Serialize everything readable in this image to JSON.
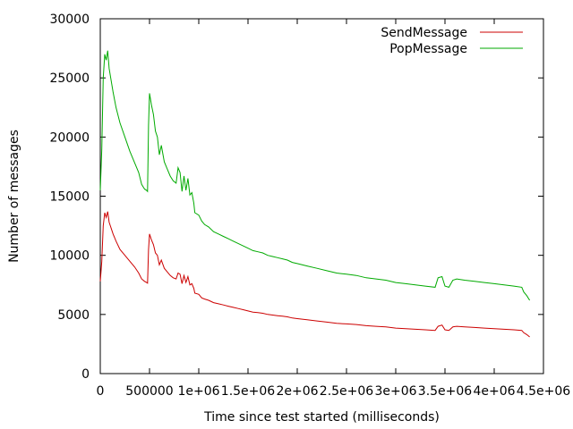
{
  "chart_data": {
    "type": "line",
    "title": "",
    "xlabel": "Time since test started (milliseconds)",
    "ylabel": "Number of messages",
    "xlim": [
      0,
      4500000
    ],
    "ylim": [
      0,
      30000
    ],
    "grid": false,
    "legend_position": "top-right",
    "x_ticks": [
      {
        "value": 0,
        "label": "0"
      },
      {
        "value": 500000,
        "label": "500000"
      },
      {
        "value": 1000000,
        "label": "1e+06"
      },
      {
        "value": 1500000,
        "label": "1.5e+06"
      },
      {
        "value": 2000000,
        "label": "2e+06"
      },
      {
        "value": 2500000,
        "label": "2.5e+06"
      },
      {
        "value": 3000000,
        "label": "3e+06"
      },
      {
        "value": 3500000,
        "label": "3.5e+06"
      },
      {
        "value": 4000000,
        "label": "4e+06"
      },
      {
        "value": 4500000,
        "label": "4.5e+06"
      }
    ],
    "y_ticks": [
      {
        "value": 0,
        "label": "0"
      },
      {
        "value": 5000,
        "label": "5000"
      },
      {
        "value": 10000,
        "label": "10000"
      },
      {
        "value": 15000,
        "label": "15000"
      },
      {
        "value": 20000,
        "label": "20000"
      },
      {
        "value": 25000,
        "label": "25000"
      },
      {
        "value": 30000,
        "label": "30000"
      }
    ],
    "series": [
      {
        "name": "SendMessage",
        "color": "#cc0000",
        "points": [
          [
            0,
            7800
          ],
          [
            15000,
            9500
          ],
          [
            30000,
            12500
          ],
          [
            45000,
            13600
          ],
          [
            60000,
            13200
          ],
          [
            75000,
            13700
          ],
          [
            90000,
            12800
          ],
          [
            110000,
            12300
          ],
          [
            130000,
            11800
          ],
          [
            160000,
            11200
          ],
          [
            200000,
            10500
          ],
          [
            250000,
            10000
          ],
          [
            300000,
            9500
          ],
          [
            350000,
            9000
          ],
          [
            390000,
            8500
          ],
          [
            420000,
            8000
          ],
          [
            450000,
            7800
          ],
          [
            470000,
            7700
          ],
          [
            480000,
            7650
          ],
          [
            490000,
            10500
          ],
          [
            500000,
            11800
          ],
          [
            520000,
            11300
          ],
          [
            540000,
            10900
          ],
          [
            560000,
            10200
          ],
          [
            580000,
            10000
          ],
          [
            600000,
            9200
          ],
          [
            620000,
            9600
          ],
          [
            650000,
            8900
          ],
          [
            680000,
            8600
          ],
          [
            710000,
            8300
          ],
          [
            740000,
            8100
          ],
          [
            770000,
            8000
          ],
          [
            790000,
            8500
          ],
          [
            810000,
            8400
          ],
          [
            830000,
            7600
          ],
          [
            850000,
            8300
          ],
          [
            870000,
            7700
          ],
          [
            890000,
            8200
          ],
          [
            910000,
            7500
          ],
          [
            930000,
            7600
          ],
          [
            950000,
            7200
          ],
          [
            960000,
            6800
          ],
          [
            1000000,
            6700
          ],
          [
            1030000,
            6400
          ],
          [
            1060000,
            6300
          ],
          [
            1100000,
            6200
          ],
          [
            1150000,
            6000
          ],
          [
            1200000,
            5900
          ],
          [
            1250000,
            5800
          ],
          [
            1300000,
            5700
          ],
          [
            1350000,
            5600
          ],
          [
            1400000,
            5500
          ],
          [
            1450000,
            5400
          ],
          [
            1500000,
            5300
          ],
          [
            1550000,
            5200
          ],
          [
            1600000,
            5150
          ],
          [
            1650000,
            5100
          ],
          [
            1700000,
            5000
          ],
          [
            1750000,
            4950
          ],
          [
            1800000,
            4900
          ],
          [
            1850000,
            4850
          ],
          [
            1900000,
            4800
          ],
          [
            1950000,
            4700
          ],
          [
            2000000,
            4650
          ],
          [
            2100000,
            4550
          ],
          [
            2200000,
            4450
          ],
          [
            2300000,
            4350
          ],
          [
            2400000,
            4250
          ],
          [
            2500000,
            4200
          ],
          [
            2600000,
            4150
          ],
          [
            2700000,
            4050
          ],
          [
            2800000,
            4000
          ],
          [
            2900000,
            3950
          ],
          [
            3000000,
            3850
          ],
          [
            3100000,
            3800
          ],
          [
            3200000,
            3750
          ],
          [
            3300000,
            3700
          ],
          [
            3400000,
            3650
          ],
          [
            3430000,
            4000
          ],
          [
            3470000,
            4100
          ],
          [
            3500000,
            3700
          ],
          [
            3540000,
            3650
          ],
          [
            3580000,
            3950
          ],
          [
            3620000,
            4000
          ],
          [
            3700000,
            3950
          ],
          [
            3800000,
            3900
          ],
          [
            3900000,
            3850
          ],
          [
            4000000,
            3800
          ],
          [
            4100000,
            3750
          ],
          [
            4200000,
            3700
          ],
          [
            4280000,
            3650
          ],
          [
            4300000,
            3450
          ],
          [
            4330000,
            3300
          ],
          [
            4360000,
            3100
          ]
        ]
      },
      {
        "name": "PopMessage",
        "color": "#00aa00",
        "points": [
          [
            0,
            15500
          ],
          [
            15000,
            19000
          ],
          [
            30000,
            25000
          ],
          [
            45000,
            27000
          ],
          [
            60000,
            26500
          ],
          [
            75000,
            27300
          ],
          [
            90000,
            25800
          ],
          [
            110000,
            24800
          ],
          [
            130000,
            23800
          ],
          [
            160000,
            22500
          ],
          [
            200000,
            21200
          ],
          [
            250000,
            20000
          ],
          [
            300000,
            18800
          ],
          [
            350000,
            17800
          ],
          [
            390000,
            17000
          ],
          [
            420000,
            16000
          ],
          [
            450000,
            15600
          ],
          [
            470000,
            15500
          ],
          [
            480000,
            15400
          ],
          [
            490000,
            21000
          ],
          [
            500000,
            23700
          ],
          [
            520000,
            22700
          ],
          [
            540000,
            21900
          ],
          [
            560000,
            20500
          ],
          [
            580000,
            20000
          ],
          [
            600000,
            18500
          ],
          [
            620000,
            19300
          ],
          [
            650000,
            17900
          ],
          [
            680000,
            17300
          ],
          [
            710000,
            16700
          ],
          [
            740000,
            16300
          ],
          [
            770000,
            16100
          ],
          [
            790000,
            17400
          ],
          [
            810000,
            17000
          ],
          [
            830000,
            15400
          ],
          [
            850000,
            16700
          ],
          [
            870000,
            15500
          ],
          [
            890000,
            16500
          ],
          [
            910000,
            15100
          ],
          [
            930000,
            15300
          ],
          [
            950000,
            14400
          ],
          [
            960000,
            13600
          ],
          [
            1000000,
            13400
          ],
          [
            1030000,
            12900
          ],
          [
            1060000,
            12600
          ],
          [
            1100000,
            12400
          ],
          [
            1150000,
            12000
          ],
          [
            1200000,
            11800
          ],
          [
            1250000,
            11600
          ],
          [
            1300000,
            11400
          ],
          [
            1350000,
            11200
          ],
          [
            1400000,
            11000
          ],
          [
            1450000,
            10800
          ],
          [
            1500000,
            10600
          ],
          [
            1550000,
            10400
          ],
          [
            1600000,
            10300
          ],
          [
            1650000,
            10200
          ],
          [
            1700000,
            10000
          ],
          [
            1750000,
            9900
          ],
          [
            1800000,
            9800
          ],
          [
            1850000,
            9700
          ],
          [
            1900000,
            9600
          ],
          [
            1950000,
            9400
          ],
          [
            2000000,
            9300
          ],
          [
            2100000,
            9100
          ],
          [
            2200000,
            8900
          ],
          [
            2300000,
            8700
          ],
          [
            2400000,
            8500
          ],
          [
            2500000,
            8400
          ],
          [
            2600000,
            8300
          ],
          [
            2700000,
            8100
          ],
          [
            2800000,
            8000
          ],
          [
            2900000,
            7900
          ],
          [
            3000000,
            7700
          ],
          [
            3100000,
            7600
          ],
          [
            3200000,
            7500
          ],
          [
            3300000,
            7400
          ],
          [
            3400000,
            7300
          ],
          [
            3430000,
            8100
          ],
          [
            3470000,
            8200
          ],
          [
            3500000,
            7400
          ],
          [
            3540000,
            7300
          ],
          [
            3580000,
            7900
          ],
          [
            3620000,
            8000
          ],
          [
            3700000,
            7900
          ],
          [
            3800000,
            7800
          ],
          [
            3900000,
            7700
          ],
          [
            4000000,
            7600
          ],
          [
            4100000,
            7500
          ],
          [
            4200000,
            7400
          ],
          [
            4280000,
            7300
          ],
          [
            4300000,
            6900
          ],
          [
            4330000,
            6600
          ],
          [
            4360000,
            6200
          ]
        ]
      }
    ]
  }
}
